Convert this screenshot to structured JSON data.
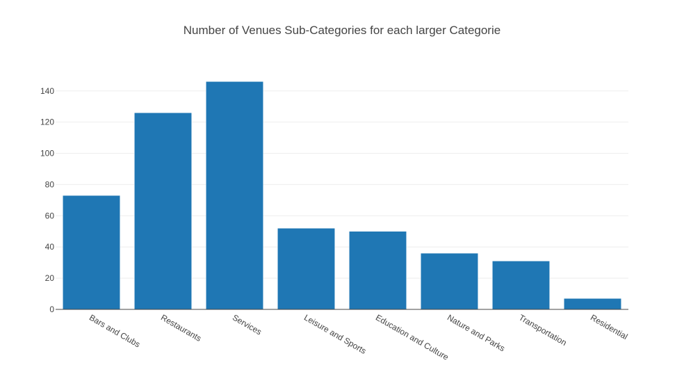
{
  "chart_data": {
    "type": "bar",
    "title": "Number of Venues Sub-Categories for each larger Categorie",
    "xlabel": "",
    "ylabel": "",
    "categories": [
      "Bars and Clubs",
      "Restaurants",
      "Services",
      "Leisure and Sports",
      "Education and Culture",
      "Nature and Parks",
      "Transportation",
      "Residential"
    ],
    "values": [
      73,
      126,
      146,
      52,
      50,
      36,
      31,
      7
    ],
    "ylim": [
      0,
      153.7
    ],
    "yticks": [
      0,
      20,
      40,
      60,
      80,
      100,
      120,
      140
    ],
    "grid": true,
    "legend": "none",
    "bar_color": "#1f77b4",
    "grid_color": "#eeeeee",
    "axis_color": "#444444"
  }
}
